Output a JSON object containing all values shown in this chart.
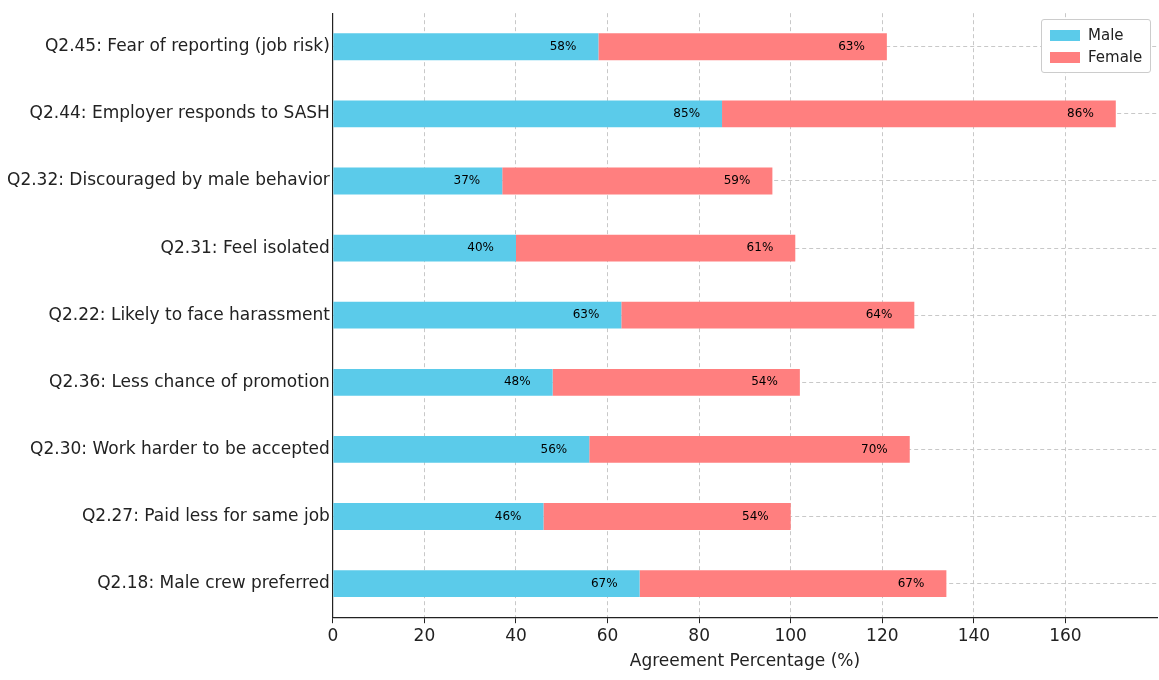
{
  "chart_data": {
    "type": "bar",
    "orientation": "horizontal",
    "stacked": true,
    "xlabel": "Agreement Percentage (%)",
    "categories": [
      "Q2.45: Fear of reporting (job risk)",
      "Q2.44: Employer responds to SASH",
      "Q2.32: Discouraged by male behavior",
      "Q2.31: Feel isolated",
      "Q2.22: Likely to face harassment",
      "Q2.36: Less chance of promotion",
      "Q2.30: Work harder to be accepted",
      "Q2.27: Paid less for same job",
      "Q2.18: Male crew preferred"
    ],
    "series": [
      {
        "name": "Male",
        "color": "#5bcbea",
        "values": [
          58,
          85,
          37,
          40,
          63,
          48,
          56,
          46,
          67
        ],
        "value_labels": [
          "58%",
          "85%",
          "37%",
          "40%",
          "63%",
          "48%",
          "56%",
          "46%",
          "67%"
        ]
      },
      {
        "name": "Female",
        "color": "#ff7f7f",
        "values": [
          63,
          86,
          59,
          61,
          64,
          54,
          70,
          54,
          67
        ],
        "value_labels": [
          "63%",
          "86%",
          "59%",
          "61%",
          "64%",
          "54%",
          "70%",
          "54%",
          "67%"
        ]
      }
    ],
    "xlim": [
      0,
      180
    ],
    "xticks": [
      0,
      20,
      40,
      60,
      80,
      100,
      120,
      140,
      160
    ],
    "grid": true,
    "legend": "top right"
  }
}
